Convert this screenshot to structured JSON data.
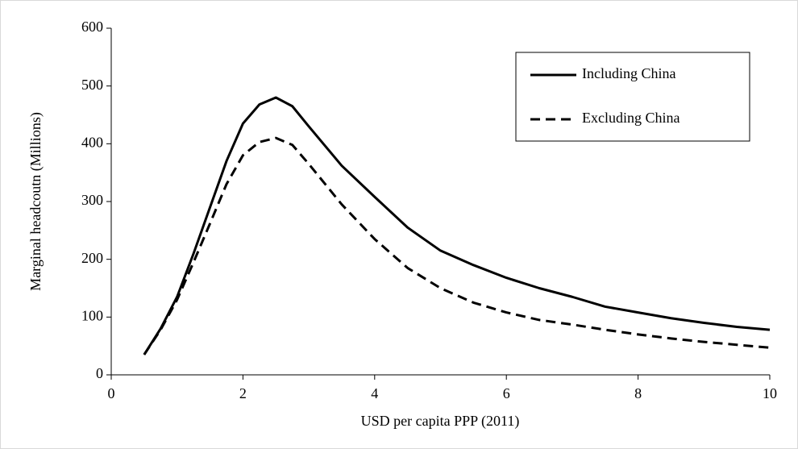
{
  "chart_data": {
    "type": "line",
    "x_label": "USD per capita PPP (2011)",
    "y_label": "Marginal headcoutn (Millions)",
    "x": [
      0.5,
      0.75,
      1,
      1.25,
      1.5,
      1.75,
      2,
      2.25,
      2.5,
      2.75,
      3,
      3.5,
      4,
      4.5,
      5,
      5.5,
      6,
      6.5,
      7,
      7.5,
      8,
      8.5,
      9,
      9.5,
      10
    ],
    "series": [
      {
        "name": "Including China",
        "color": "#000000",
        "dash": "solid",
        "values": [
          35,
          80,
          135,
          210,
          290,
          370,
          435,
          468,
          480,
          465,
          430,
          362,
          308,
          255,
          215,
          190,
          168,
          150,
          135,
          118,
          108,
          98,
          90,
          83,
          78
        ]
      },
      {
        "name": "Excluding China",
        "color": "#000000",
        "dash": "dashed",
        "values": [
          35,
          78,
          130,
          195,
          262,
          330,
          380,
          403,
          410,
          398,
          365,
          295,
          235,
          185,
          150,
          125,
          108,
          95,
          87,
          78,
          70,
          63,
          57,
          52,
          47
        ]
      }
    ],
    "xlim": [
      0,
      10
    ],
    "xticks": [
      0,
      2,
      4,
      6,
      8,
      10
    ],
    "ylim": [
      0,
      600
    ],
    "yticks": [
      0,
      100,
      200,
      300,
      400,
      500,
      600
    ],
    "grid": false,
    "legend": "upper right"
  }
}
